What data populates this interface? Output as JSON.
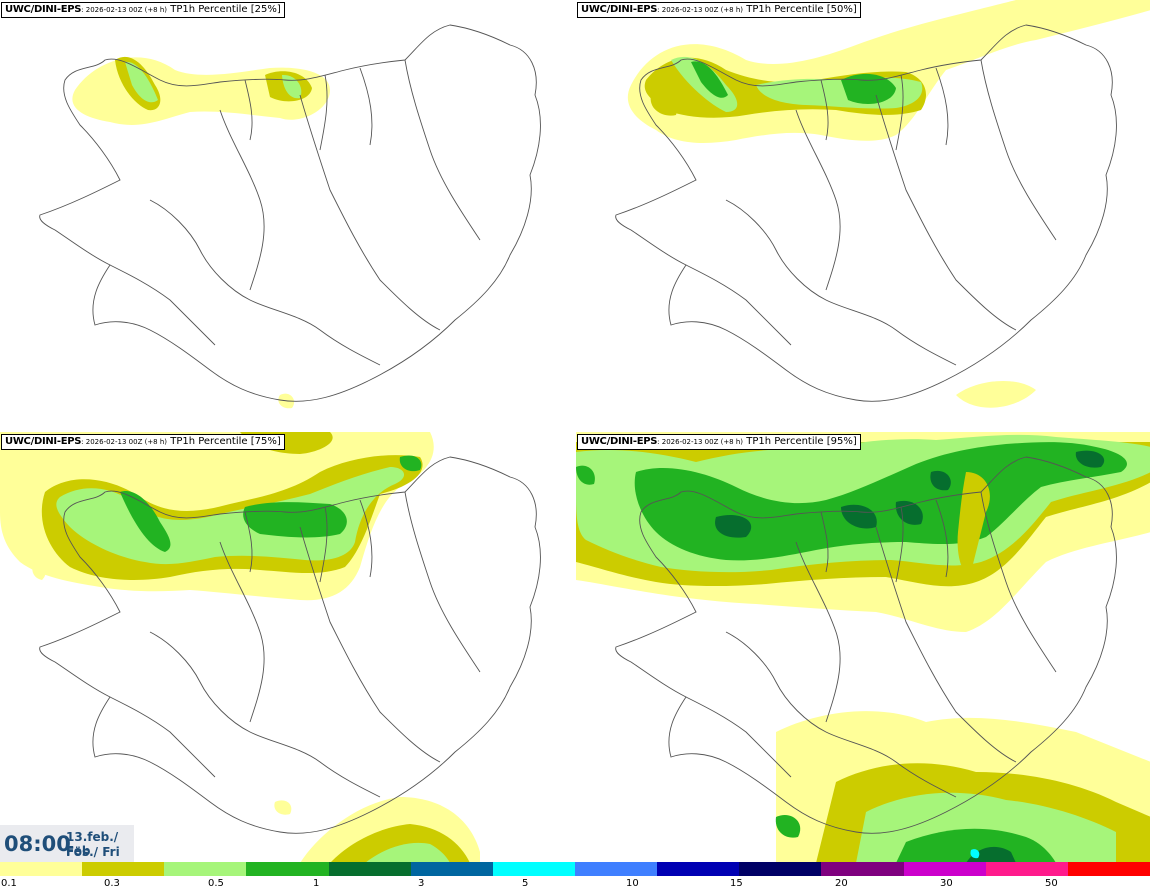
{
  "panels": [
    {
      "model": "UWC/DINI-EPS",
      "run": ": 2026-02-13 00Z (+8 h)",
      "product": " TP1h Percentile [25%]"
    },
    {
      "model": "UWC/DINI-EPS",
      "run": ": 2026-02-13 00Z (+8 h)",
      "product": " TP1h Percentile [50%]"
    },
    {
      "model": "UWC/DINI-EPS",
      "run": ": 2026-02-13 00Z (+8 h)",
      "product": " TP1h Percentile [75%]"
    },
    {
      "model": "UWC/DINI-EPS",
      "run": ": 2026-02-13 00Z (+8 h)",
      "product": " TP1h Percentile [95%]"
    }
  ],
  "valid_time": {
    "time": "08:00",
    "date_line1": "13.feb./ Feb",
    "date_line2": "Fös./ Fri"
  },
  "legend": {
    "colors": [
      "#ffff99",
      "#cccc00",
      "#a6f57a",
      "#22b322",
      "#066e2e",
      "#0066a0",
      "#00ffff",
      "#3f7fff",
      "#0000b3",
      "#000066",
      "#7f007f",
      "#cc00cc",
      "#ff1a8c",
      "#ff0000"
    ],
    "ticks": [
      "0.1",
      "0.3",
      "0.5",
      "1",
      "3",
      "5",
      "10",
      "15",
      "20",
      "30",
      "50"
    ]
  }
}
